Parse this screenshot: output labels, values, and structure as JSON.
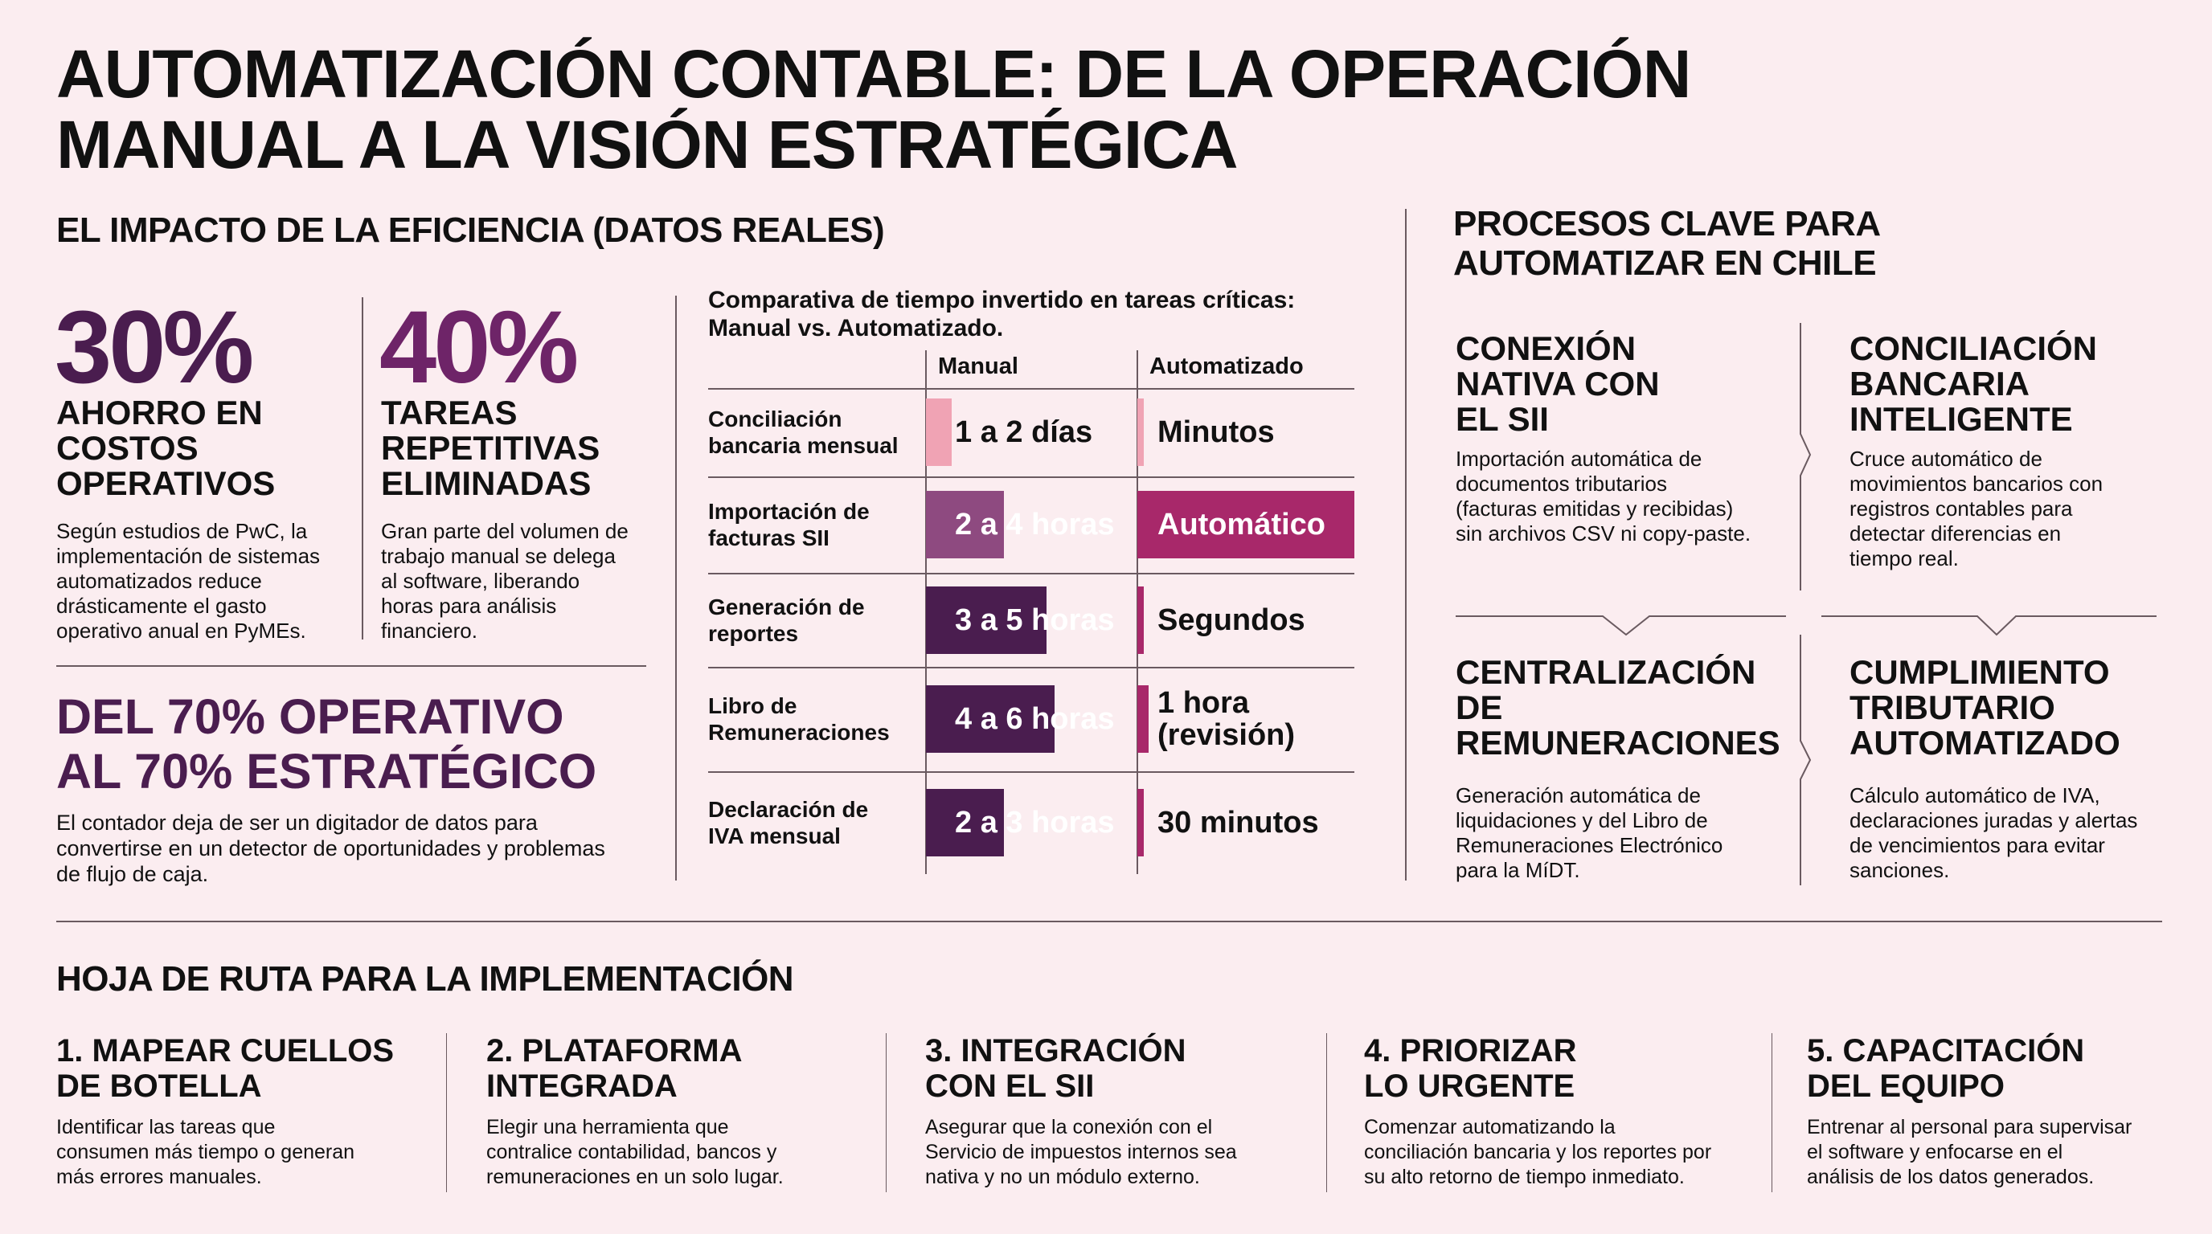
{
  "title": "AUTOMATIZACIÓN CONTABLE: DE LA OPERACIÓN\nMANUAL A LA VISIÓN ESTRATÉGICA",
  "colors": {
    "background": "#fbedf0",
    "dark_purple": "#4a1d4f",
    "mid_purple": "#8e4a80",
    "magenta": "#a8286a",
    "pink": "#f0a3b4"
  },
  "impact": {
    "heading": "EL IMPACTO DE LA EFICIENCIA (DATOS REALES)",
    "stats": [
      {
        "value": "30%",
        "label": "AHORRO EN\nCOSTOS\nOPERATIVOS",
        "text": "Según estudios de PwC, la\nimplementación de sistemas\nautomatizados reduce\ndrásticamente el gasto\noperativo anual en PyMEs."
      },
      {
        "value": "40%",
        "label": "TAREAS\nREPETITIVAS\nELIMINADAS",
        "text": "Gran parte del volumen de\ntrabajo manual se delega\nal software, liberando\nhoras para análisis\nfinanciero."
      }
    ],
    "strategic_heading": "DEL 70% OPERATIVO\nAL 70% ESTRATÉGICO",
    "strategic_text": "El contador deja de ser un digitador de datos para\nconvertirse en un detector de oportunidades y problemas\nde flujo de caja."
  },
  "comparison": {
    "title": "Comparativa de tiempo invertido en tareas críticas:\nManual vs. Automatizado.",
    "columns": [
      "Manual",
      "Automatizado"
    ],
    "rows": [
      {
        "task": "Conciliación\nbancaria mensual",
        "manual": "1 a 2 días",
        "auto": "Minutos",
        "manual_fill": 0.12,
        "auto_fill": 0.03,
        "manual_color": "#f0a3b4",
        "auto_color": "#f0a3b4"
      },
      {
        "task": "Importación de\nfacturas SII",
        "manual": "2 a 4 horas",
        "auto": "Automático",
        "manual_fill": 0.37,
        "auto_fill": 1.0,
        "manual_color": "#8e4a80",
        "auto_color": "#a8286a"
      },
      {
        "task": "Generación de\nreportes",
        "manual": "3 a 5 horas",
        "auto": "Segundos",
        "manual_fill": 0.57,
        "auto_fill": 0.03,
        "manual_color": "#4a1d4f",
        "auto_color": "#a8286a"
      },
      {
        "task": "Libro de\nRemuneraciones",
        "manual": "4 a 6 horas",
        "auto": "1 hora\n(revisión)",
        "manual_fill": 0.61,
        "auto_fill": 0.05,
        "manual_color": "#4a1d4f",
        "auto_color": "#a8286a"
      },
      {
        "task": "Declaración de\nIVA mensual",
        "manual": "2 a 3 horas",
        "auto": "30 minutos",
        "manual_fill": 0.37,
        "auto_fill": 0.03,
        "manual_color": "#4a1d4f",
        "auto_color": "#a8286a"
      }
    ]
  },
  "processes": {
    "heading": "PROCESOS CLAVE PARA\nAUTOMATIZAR EN CHILE",
    "items": [
      {
        "title": "CONEXIÓN\nNATIVA CON\nEL SII",
        "text": "Importación automática de\ndocumentos tributarios\n(facturas emitidas y recibidas)\nsin archivos CSV ni copy-paste."
      },
      {
        "title": "CONCILIACIÓN\nBANCARIA\nINTELIGENTE",
        "text": "Cruce automático de\nmovimientos bancarios con\nregistros contables para\ndetectar diferencias en\ntiempo real."
      },
      {
        "title": "CENTRALIZACIÓN\nDE\nREMUNERACIONES",
        "text": "Generación automática de\nliquidaciones y del Libro de\nRemuneraciones Electrónico\npara la MíDT."
      },
      {
        "title": "CUMPLIMIENTO\nTRIBUTARIO\nAUTOMATIZADO",
        "text": "Cálculo automático de IVA,\ndeclaraciones juradas y alertas\nde vencimientos para evitar\nsanciones."
      }
    ]
  },
  "roadmap": {
    "heading": "HOJA DE RUTA PARA LA IMPLEMENTACIÓN",
    "steps": [
      {
        "title": "1. MAPEAR CUELLOS\nDE BOTELLA",
        "text": "Identificar las tareas que\nconsumen más tiempo o generan\nmás errores manuales."
      },
      {
        "title": "2. PLATAFORMA\nINTEGRADA",
        "text": "Elegir una herramienta que\ncontralice contabilidad, bancos y\nremuneraciones en un solo lugar."
      },
      {
        "title": "3. INTEGRACIÓN\nCON EL SII",
        "text": "Asegurar que la conexión con el\nServicio de impuestos internos sea\nnativa y no un módulo externo."
      },
      {
        "title": "4. PRIORIZAR\nLO URGENTE",
        "text": "Comenzar automatizando la\nconciliación bancaria y los reportes por\nsu alto retorno de tiempo inmediato."
      },
      {
        "title": "5. CAPACITACIÓN\nDEL EQUIPO",
        "text": "Entrenar al personal para supervisar\nel software y enfocarse en el\nanálisis de los datos generados."
      }
    ]
  }
}
